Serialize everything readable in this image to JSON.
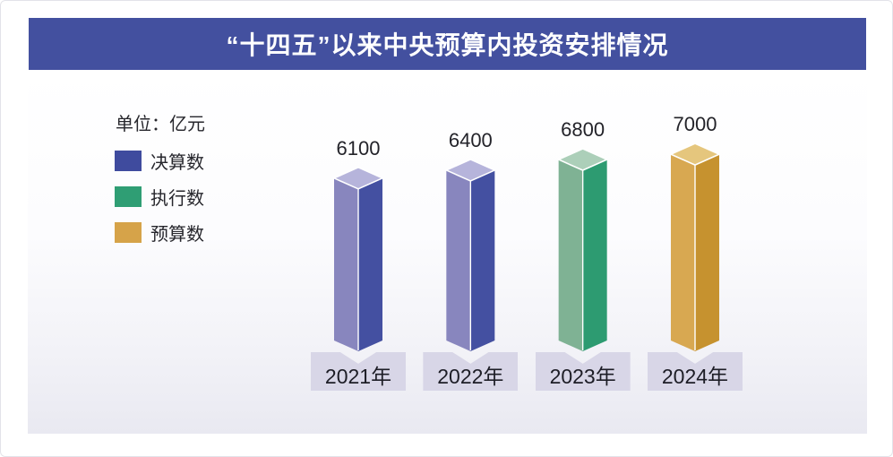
{
  "title": "“十四五”以来中央预算内投资安排情况",
  "unit_label": "单位：亿元",
  "colors": {
    "title_bar_bg": "#43509f",
    "title_text": "#ffffff",
    "year_plate_bg": "#d8d6e7",
    "panel_gradient_bottom": "#e9e9f1"
  },
  "legend": {
    "items": [
      {
        "label": "决算数",
        "color": "#3f4b9e"
      },
      {
        "label": "执行数",
        "color": "#2f9e74"
      },
      {
        "label": "预算数",
        "color": "#d6a349"
      }
    ]
  },
  "chart_data": {
    "type": "bar",
    "title": "“十四五”以来中央预算内投资安排情况",
    "unit": "亿元",
    "categories": [
      "2021年",
      "2022年",
      "2023年",
      "2024年"
    ],
    "values": [
      6100,
      6400,
      6800,
      7000
    ],
    "series_by_bar": [
      "决算数",
      "决算数",
      "执行数",
      "预算数"
    ],
    "data_labels": [
      "6100",
      "6400",
      "6800",
      "7000"
    ],
    "ylim": [
      0,
      7000
    ],
    "grid": false,
    "legend_position": "upper-left",
    "bar_style": "3d-column",
    "bar_colors": [
      {
        "left": "#8886be",
        "right": "#4450a1",
        "top": "#b6b4db"
      },
      {
        "left": "#8886be",
        "right": "#4450a1",
        "top": "#b6b4db"
      },
      {
        "left": "#7fb294",
        "right": "#2d9b71",
        "top": "#accfb9"
      },
      {
        "left": "#d8a851",
        "right": "#c6922f",
        "top": "#e5c67d"
      }
    ]
  }
}
